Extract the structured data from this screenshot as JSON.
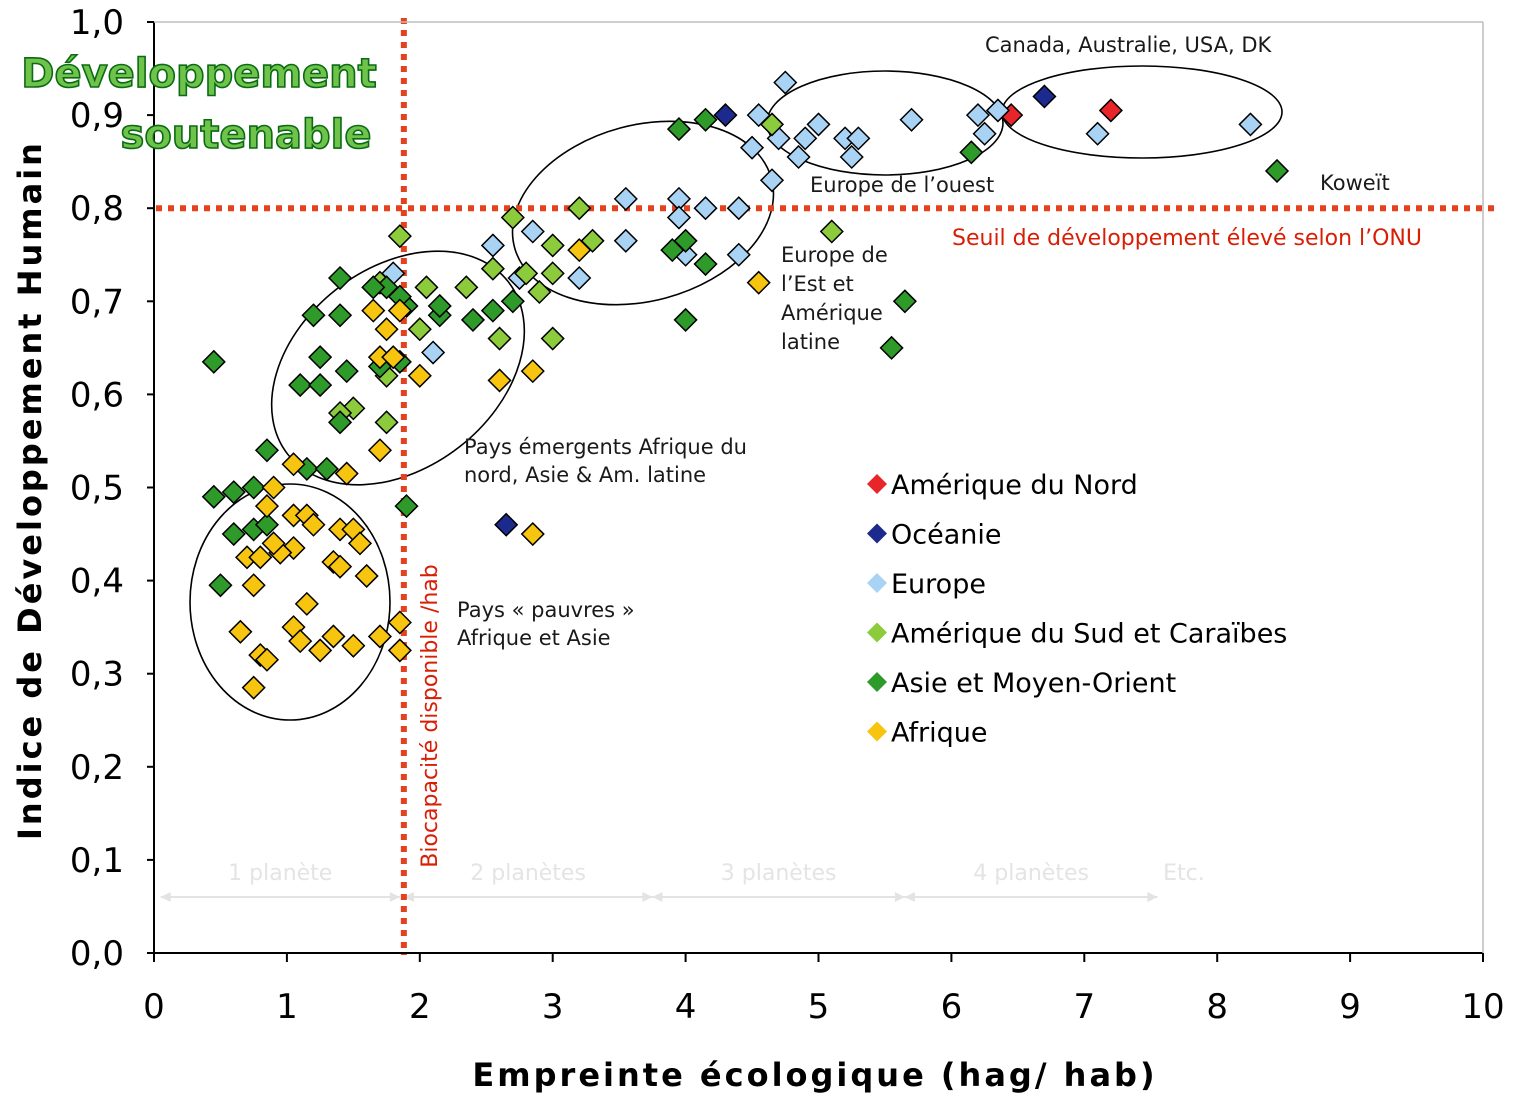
{
  "chart_data": {
    "type": "scatter",
    "title": "",
    "xlabel": "Empreinte écologique (hag/ hab)",
    "ylabel": "Indice de Développement Humain",
    "xlim": [
      0,
      10
    ],
    "ylim": [
      0,
      1
    ],
    "x_ticks": [
      "0",
      "1",
      "2",
      "3",
      "4",
      "5",
      "6",
      "7",
      "8",
      "9",
      "10"
    ],
    "y_ticks": [
      "0,0",
      "0,1",
      "0,2",
      "0,3",
      "0,4",
      "0,5",
      "0,6",
      "0,7",
      "0,8",
      "0,9",
      "1,0"
    ],
    "grid": false,
    "legend_position": "center-right",
    "series": [
      {
        "name": "Amérique du Nord",
        "color": "#e8262a",
        "points": [
          [
            6.45,
            0.9
          ],
          [
            7.2,
            0.905
          ]
        ]
      },
      {
        "name": "Océanie",
        "color": "#1b2a8c",
        "points": [
          [
            4.3,
            0.9
          ],
          [
            6.7,
            0.92
          ],
          [
            2.65,
            0.46
          ]
        ]
      },
      {
        "name": "Europe",
        "color": "#a9d3f5",
        "points": [
          [
            4.55,
            0.9
          ],
          [
            4.75,
            0.935
          ],
          [
            4.5,
            0.865
          ],
          [
            4.7,
            0.875
          ],
          [
            4.9,
            0.875
          ],
          [
            5.0,
            0.89
          ],
          [
            4.85,
            0.855
          ],
          [
            4.65,
            0.83
          ],
          [
            5.2,
            0.875
          ],
          [
            5.3,
            0.875
          ],
          [
            5.25,
            0.855
          ],
          [
            5.7,
            0.895
          ],
          [
            6.2,
            0.9
          ],
          [
            6.35,
            0.905
          ],
          [
            6.25,
            0.88
          ],
          [
            7.1,
            0.88
          ],
          [
            8.25,
            0.89
          ],
          [
            3.55,
            0.81
          ],
          [
            3.95,
            0.81
          ],
          [
            4.15,
            0.8
          ],
          [
            4.4,
            0.8
          ],
          [
            3.95,
            0.79
          ],
          [
            4.0,
            0.75
          ],
          [
            4.4,
            0.75
          ],
          [
            3.55,
            0.765
          ],
          [
            2.85,
            0.775
          ],
          [
            3.2,
            0.725
          ],
          [
            2.75,
            0.725
          ],
          [
            2.55,
            0.76
          ],
          [
            1.8,
            0.73
          ],
          [
            2.1,
            0.645
          ]
        ]
      },
      {
        "name": "Amérique du Sud et Caraïbes",
        "color": "#8ccc3c",
        "points": [
          [
            4.65,
            0.89
          ],
          [
            5.1,
            0.775
          ],
          [
            3.0,
            0.76
          ],
          [
            3.3,
            0.765
          ],
          [
            3.2,
            0.8
          ],
          [
            2.7,
            0.79
          ],
          [
            2.55,
            0.735
          ],
          [
            2.8,
            0.73
          ],
          [
            3.0,
            0.73
          ],
          [
            2.9,
            0.71
          ],
          [
            2.35,
            0.715
          ],
          [
            2.05,
            0.715
          ],
          [
            2.0,
            0.67
          ],
          [
            1.7,
            0.72
          ],
          [
            1.85,
            0.77
          ],
          [
            1.75,
            0.62
          ],
          [
            1.5,
            0.585
          ],
          [
            1.4,
            0.58
          ],
          [
            1.75,
            0.57
          ],
          [
            2.6,
            0.66
          ],
          [
            3.0,
            0.66
          ]
        ]
      },
      {
        "name": "Asie et Moyen-Orient",
        "color": "#2e9a2a",
        "points": [
          [
            8.45,
            0.84
          ],
          [
            6.15,
            0.86
          ],
          [
            4.15,
            0.895
          ],
          [
            3.95,
            0.885
          ],
          [
            5.65,
            0.7
          ],
          [
            5.55,
            0.65
          ],
          [
            4.0,
            0.68
          ],
          [
            4.15,
            0.74
          ],
          [
            3.9,
            0.755
          ],
          [
            4.0,
            0.765
          ],
          [
            2.7,
            0.7
          ],
          [
            2.55,
            0.69
          ],
          [
            2.4,
            0.68
          ],
          [
            2.15,
            0.685
          ],
          [
            2.15,
            0.695
          ],
          [
            1.9,
            0.695
          ],
          [
            1.85,
            0.705
          ],
          [
            1.75,
            0.715
          ],
          [
            1.65,
            0.715
          ],
          [
            1.85,
            0.635
          ],
          [
            1.7,
            0.63
          ],
          [
            1.4,
            0.725
          ],
          [
            1.4,
            0.685
          ],
          [
            1.2,
            0.685
          ],
          [
            1.25,
            0.64
          ],
          [
            1.45,
            0.625
          ],
          [
            1.1,
            0.61
          ],
          [
            1.25,
            0.61
          ],
          [
            1.4,
            0.57
          ],
          [
            1.15,
            0.52
          ],
          [
            1.3,
            0.52
          ],
          [
            0.85,
            0.54
          ],
          [
            0.45,
            0.635
          ],
          [
            0.45,
            0.49
          ],
          [
            0.6,
            0.495
          ],
          [
            0.75,
            0.5
          ],
          [
            0.75,
            0.455
          ],
          [
            0.85,
            0.46
          ],
          [
            0.6,
            0.45
          ],
          [
            0.5,
            0.395
          ],
          [
            1.9,
            0.48
          ]
        ]
      },
      {
        "name": "Afrique",
        "color": "#f7c410",
        "points": [
          [
            4.55,
            0.72
          ],
          [
            3.2,
            0.755
          ],
          [
            2.85,
            0.625
          ],
          [
            2.6,
            0.615
          ],
          [
            2.85,
            0.45
          ],
          [
            2.0,
            0.62
          ],
          [
            1.85,
            0.69
          ],
          [
            1.75,
            0.67
          ],
          [
            1.65,
            0.69
          ],
          [
            1.7,
            0.64
          ],
          [
            1.8,
            0.64
          ],
          [
            1.7,
            0.54
          ],
          [
            1.45,
            0.515
          ],
          [
            1.05,
            0.525
          ],
          [
            0.9,
            0.5
          ],
          [
            0.85,
            0.48
          ],
          [
            1.05,
            0.47
          ],
          [
            1.15,
            0.47
          ],
          [
            1.2,
            0.46
          ],
          [
            1.05,
            0.435
          ],
          [
            0.95,
            0.43
          ],
          [
            0.7,
            0.425
          ],
          [
            0.8,
            0.425
          ],
          [
            0.9,
            0.44
          ],
          [
            1.4,
            0.455
          ],
          [
            1.5,
            0.455
          ],
          [
            1.55,
            0.44
          ],
          [
            1.35,
            0.42
          ],
          [
            1.4,
            0.415
          ],
          [
            1.6,
            0.405
          ],
          [
            0.75,
            0.395
          ],
          [
            1.15,
            0.375
          ],
          [
            1.05,
            0.35
          ],
          [
            1.1,
            0.335
          ],
          [
            1.35,
            0.34
          ],
          [
            1.25,
            0.325
          ],
          [
            1.5,
            0.33
          ],
          [
            1.7,
            0.34
          ],
          [
            0.65,
            0.345
          ],
          [
            0.8,
            0.32
          ],
          [
            0.85,
            0.315
          ],
          [
            0.75,
            0.285
          ],
          [
            1.85,
            0.355
          ],
          [
            1.85,
            0.325
          ]
        ]
      }
    ],
    "annotations": {
      "sustainable": [
        "Développement",
        "soutenable"
      ],
      "western": [
        "Canada,  Australie, USA, DK"
      ],
      "west_europe": [
        "Europe de l’ouest"
      ],
      "kuwait": [
        "Koweït"
      ],
      "threshold": [
        "Seuil de développement élevé selon l’ONU"
      ],
      "east_europe": [
        "Europe de",
        "l’Est et",
        "Amérique",
        "latine"
      ],
      "emerging": [
        "Pays  émergents  Afrique du",
        "nord, Asie & Am. latine"
      ],
      "poor": [
        "Pays « pauvres »",
        "Afrique et  Asie"
      ],
      "biocapacity": [
        "Biocapacité disponible /hab"
      ]
    },
    "reference_lines": {
      "hdi_threshold": 0.8,
      "biocapacity": 1.88
    },
    "planets": [
      "1 planète",
      "2 planètes",
      "3 planètes",
      "4 planètes",
      "Etc."
    ],
    "colors": {
      "reference_line": "#e4421e",
      "marker_outline": "#000000"
    }
  }
}
